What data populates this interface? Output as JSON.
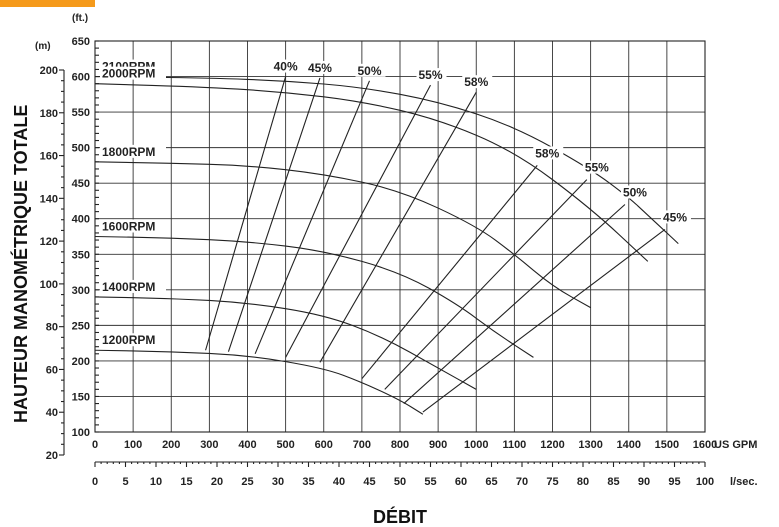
{
  "header": {
    "bar_color": "#f59a1b"
  },
  "chart_data": {
    "type": "line",
    "xlabel": "DÉBIT",
    "ylabel": "HAUTEUR MANOMÉTRIQUE TOTALE",
    "x_unit": "US GPM",
    "x2_unit": "l/sec.",
    "y_unit_ft": "(ft.)",
    "y_unit_m": "(m)",
    "xlim": [
      0,
      1600
    ],
    "ylim": [
      100,
      650
    ],
    "x_ticks": [
      0,
      100,
      200,
      300,
      400,
      500,
      600,
      700,
      800,
      900,
      1000,
      1100,
      1200,
      1300,
      1400,
      1500,
      1600
    ],
    "y_ticks_ft": [
      100,
      150,
      200,
      250,
      300,
      350,
      400,
      450,
      500,
      550,
      600,
      650
    ],
    "y_ticks_m": [
      20,
      40,
      60,
      80,
      100,
      120,
      140,
      160,
      180,
      200
    ],
    "x2_ticks": [
      0,
      5,
      10,
      15,
      20,
      25,
      30,
      35,
      40,
      45,
      50,
      55,
      60,
      65,
      70,
      75,
      80,
      85,
      90,
      95,
      100
    ],
    "grid": true,
    "series": [
      {
        "name": "2100RPM",
        "x": [
          0,
          300,
          500,
          700,
          900,
          1100,
          1300,
          1400,
          1450,
          1500,
          1530
        ],
        "y": [
          600,
          598,
          594,
          585,
          565,
          530,
          470,
          430,
          405,
          380,
          365
        ]
      },
      {
        "name": "2000RPM",
        "x": [
          0,
          300,
          500,
          700,
          900,
          1100,
          1300,
          1450
        ],
        "y": [
          590,
          585,
          578,
          565,
          540,
          495,
          415,
          340
        ]
      },
      {
        "name": "1800RPM",
        "x": [
          0,
          200,
          400,
          600,
          800,
          1000,
          1100,
          1200,
          1300
        ],
        "y": [
          480,
          478,
          475,
          463,
          440,
          390,
          350,
          305,
          275
        ]
      },
      {
        "name": "1600RPM",
        "x": [
          0,
          200,
          400,
          600,
          800,
          950,
          1050,
          1150
        ],
        "y": [
          375,
          373,
          368,
          355,
          325,
          280,
          240,
          205
        ]
      },
      {
        "name": "1400RPM",
        "x": [
          0,
          200,
          400,
          600,
          750,
          900,
          1000
        ],
        "y": [
          290,
          288,
          282,
          265,
          235,
          190,
          160
        ]
      },
      {
        "name": "1200RPM",
        "x": [
          0,
          200,
          400,
          600,
          700,
          800,
          860
        ],
        "y": [
          215,
          213,
          208,
          190,
          170,
          145,
          125
        ]
      }
    ],
    "efficiency_lines": [
      {
        "name": "40%",
        "points": [
          [
            290,
            215
          ],
          [
            500,
            600
          ]
        ]
      },
      {
        "name": "45%",
        "points": [
          [
            350,
            213
          ],
          [
            590,
            598
          ]
        ]
      },
      {
        "name": "50%",
        "points": [
          [
            420,
            210
          ],
          [
            720,
            594
          ]
        ]
      },
      {
        "name": "55%",
        "points": [
          [
            500,
            205
          ],
          [
            880,
            588
          ]
        ]
      },
      {
        "name": "58%",
        "points": [
          [
            590,
            198
          ],
          [
            1000,
            578
          ]
        ]
      },
      {
        "name": "58%",
        "points": [
          [
            700,
            175
          ],
          [
            1160,
            475
          ]
        ]
      },
      {
        "name": "55%",
        "points": [
          [
            760,
            160
          ],
          [
            1290,
            455
          ]
        ]
      },
      {
        "name": "50%",
        "points": [
          [
            810,
            140
          ],
          [
            1390,
            420
          ]
        ]
      },
      {
        "name": "45%",
        "points": [
          [
            860,
            128
          ],
          [
            1495,
            385
          ]
        ]
      }
    ],
    "efficiency_labels": [
      "40%",
      "45%",
      "50%",
      "55%",
      "58%",
      "58%",
      "55%",
      "50%",
      "45%"
    ]
  }
}
